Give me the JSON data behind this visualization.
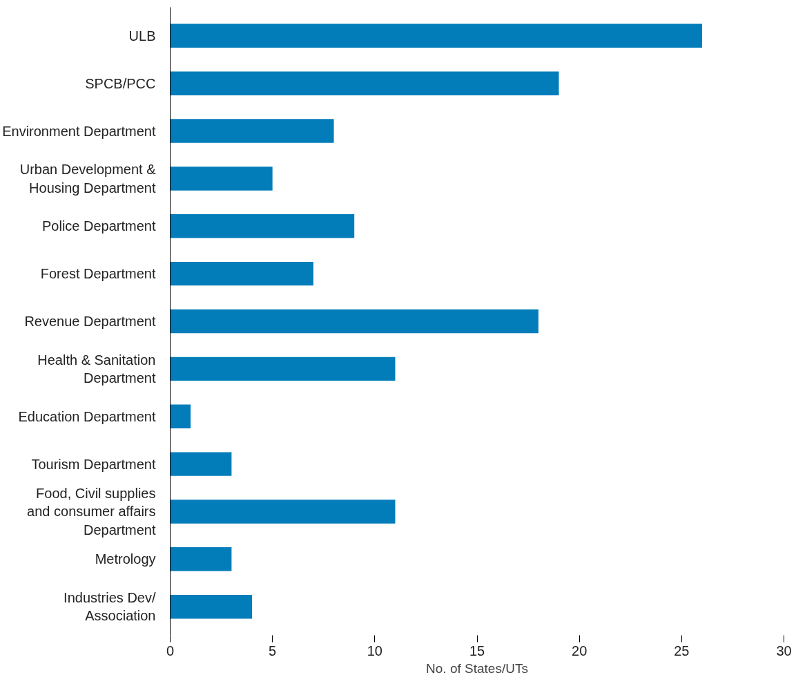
{
  "chart_data": {
    "type": "bar",
    "orientation": "horizontal",
    "xlabel": "No. of States/UTs",
    "categories": [
      "ULB",
      "SPCB/PCC",
      "Environment Department",
      "Urban Development &\nHousing Department",
      "Police Department",
      "Forest Department",
      "Revenue Department",
      "Health & Sanitation\nDepartment",
      "Education Department",
      "Tourism Department",
      "Food, Civil supplies\nand consumer affairs\nDepartment",
      "Metrology",
      "Industries Dev/\nAssociation"
    ],
    "values": [
      26,
      19,
      8,
      5,
      9,
      7,
      18,
      11,
      1,
      3,
      11,
      3,
      4
    ],
    "color": "#037dba",
    "xlim": [
      0,
      30
    ],
    "xticks": [
      0,
      5,
      10,
      15,
      20,
      25,
      30
    ],
    "grid": false
  }
}
